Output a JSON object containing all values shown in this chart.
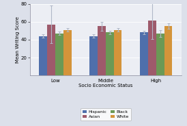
{
  "title": "",
  "xlabel": "Socio Economic Status",
  "ylabel": "Mean Writing Score",
  "categories": [
    "Low",
    "Middle",
    "High"
  ],
  "groups": [
    "Hispanic",
    "Asian",
    "Black",
    "White"
  ],
  "bar_colors": [
    "#4f6fab",
    "#9e5a6b",
    "#6b9955",
    "#d4943a"
  ],
  "values": [
    [
      44,
      57,
      47,
      51
    ],
    [
      44,
      55,
      48,
      51
    ],
    [
      48,
      61,
      47,
      55
    ]
  ],
  "errors": [
    [
      2,
      21,
      2,
      2
    ],
    [
      2,
      5,
      2,
      2
    ],
    [
      2,
      20,
      4,
      3
    ]
  ],
  "ylim": [
    0,
    80
  ],
  "yticks": [
    20,
    40,
    60,
    80
  ],
  "background_color": "#dce0ea",
  "plot_bg_color": "#eceef4",
  "error_color": "#b0b8c8",
  "grid_color": "#ffffff",
  "spine_color": "#888899"
}
